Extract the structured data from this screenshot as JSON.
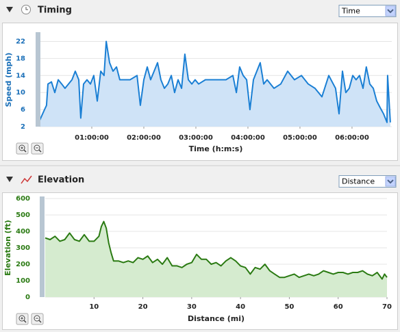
{
  "panels": [
    {
      "title": "Timing",
      "select": "Time"
    },
    {
      "title": "Elevation",
      "select": "Distance"
    }
  ],
  "chart_data": [
    {
      "type": "area",
      "xlabel": "Time (h:m:s)",
      "ylabel": "Speed (mph)",
      "color": "#1a7fd4",
      "fill": "#cfe3f7",
      "tick_color": "#1a6fb8",
      "grid": true,
      "xlim": [
        0,
        24350
      ],
      "ylim": [
        2,
        24
      ],
      "xticks": [
        {
          "value": 3600,
          "label": "01:00:00"
        },
        {
          "value": 7200,
          "label": "02:00:00"
        },
        {
          "value": 10800,
          "label": "03:00:00"
        },
        {
          "value": 14400,
          "label": "04:00:00"
        },
        {
          "value": 18000,
          "label": "05:00:00"
        },
        {
          "value": 21600,
          "label": "06:00:00"
        }
      ],
      "yticks": [
        2,
        6,
        10,
        14,
        18,
        22
      ],
      "x": [
        0,
        330,
        470,
        570,
        810,
        1040,
        1280,
        1520,
        1750,
        1990,
        2230,
        2460,
        2700,
        2840,
        3030,
        3270,
        3510,
        3740,
        3980,
        4220,
        4450,
        4600,
        4830,
        5070,
        5310,
        5540,
        5780,
        6250,
        6730,
        6960,
        7200,
        7440,
        7670,
        7910,
        8150,
        8380,
        8620,
        8860,
        9100,
        9330,
        9570,
        9810,
        10040,
        10280,
        10520,
        10750,
        10990,
        11460,
        11940,
        12410,
        12880,
        13360,
        13600,
        13830,
        14070,
        14310,
        14540,
        14780,
        15250,
        15490,
        15730,
        16200,
        16670,
        17150,
        17620,
        18100,
        18570,
        19040,
        19520,
        19990,
        20460,
        20700,
        20940,
        21170,
        21410,
        21650,
        21880,
        22120,
        22360,
        22590,
        22830,
        23070,
        23310,
        23540,
        23780,
        24020,
        24060,
        24250
      ],
      "values": [
        3.5,
        6,
        7,
        12,
        12.5,
        10,
        13,
        12,
        11,
        12,
        13,
        15,
        13,
        4,
        12,
        13,
        12,
        14,
        8,
        15,
        14,
        22,
        17,
        15,
        16,
        13,
        13,
        13,
        14,
        7,
        13,
        16,
        13,
        15,
        17,
        13,
        11,
        12,
        14,
        10,
        13,
        11,
        19,
        13,
        12,
        13,
        12,
        13,
        13,
        13,
        13,
        14,
        10,
        16,
        14,
        13,
        6,
        13,
        17,
        12,
        13,
        11,
        12,
        15,
        13,
        14,
        12,
        11,
        9,
        14,
        11,
        5,
        15,
        10,
        11,
        14,
        13,
        14,
        11,
        16,
        12,
        11,
        8,
        6.5,
        5,
        3,
        14,
        3
      ]
    },
    {
      "type": "area",
      "xlabel": "Distance (mi)",
      "ylabel": "Elevation (ft)",
      "color": "#2a7a12",
      "fill": "#d5ebcf",
      "tick_color": "#2a7a12",
      "grid": true,
      "xlim": [
        0,
        70
      ],
      "ylim": [
        0,
        600
      ],
      "xticks": [
        10,
        20,
        30,
        40,
        50,
        60,
        70
      ],
      "yticks": [
        0,
        100,
        200,
        300,
        400,
        500,
        600
      ],
      "x": [
        0,
        1,
        2,
        3,
        4,
        5,
        5.5,
        6,
        7,
        8,
        9,
        10,
        11,
        11.5,
        12,
        12.5,
        13,
        13.5,
        14,
        15,
        16,
        17,
        18,
        19,
        20,
        21,
        22,
        23,
        24,
        25,
        26,
        27,
        28,
        29,
        30,
        31,
        32,
        33,
        34,
        35,
        36,
        37,
        38,
        39,
        40,
        41,
        42,
        43,
        44,
        45,
        46,
        47,
        48,
        49,
        50,
        51,
        52,
        53,
        54,
        55,
        56,
        57,
        58,
        59,
        60,
        61,
        62,
        63,
        64,
        65,
        66,
        67,
        68,
        69,
        69.5,
        70
      ],
      "values": [
        360,
        350,
        370,
        340,
        350,
        390,
        370,
        350,
        340,
        380,
        340,
        340,
        370,
        430,
        460,
        420,
        330,
        270,
        220,
        220,
        210,
        220,
        210,
        240,
        230,
        250,
        210,
        230,
        200,
        240,
        190,
        190,
        180,
        200,
        210,
        260,
        230,
        230,
        200,
        210,
        190,
        220,
        240,
        220,
        190,
        180,
        140,
        180,
        170,
        200,
        160,
        140,
        120,
        120,
        130,
        140,
        120,
        130,
        140,
        130,
        140,
        160,
        150,
        140,
        150,
        150,
        140,
        150,
        150,
        160,
        140,
        130,
        150,
        110,
        140,
        120
      ]
    }
  ]
}
